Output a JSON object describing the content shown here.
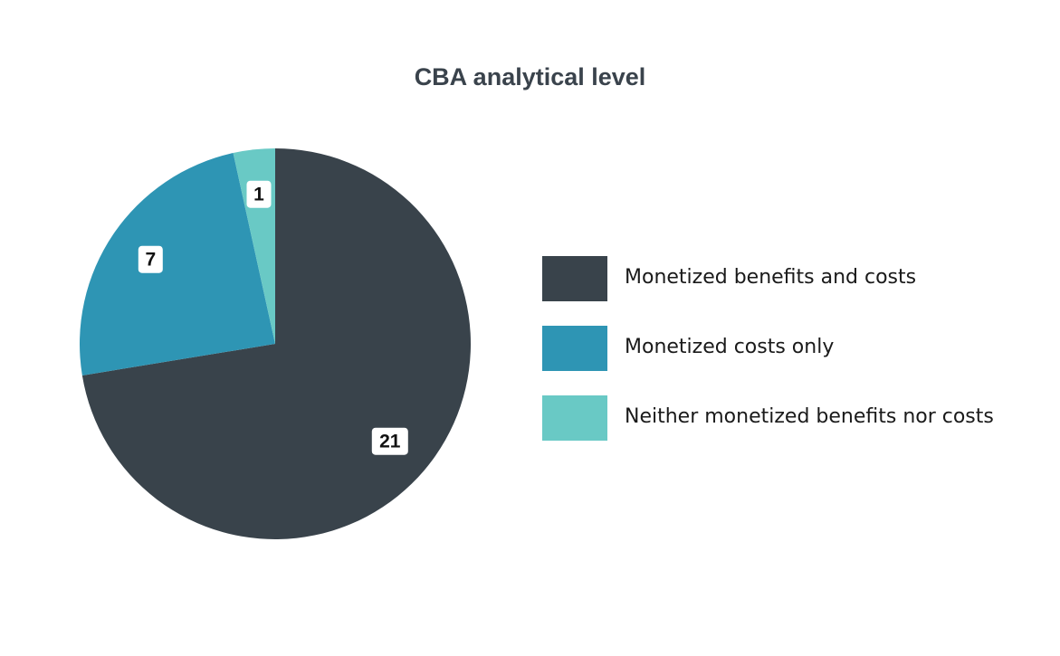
{
  "chart_data": {
    "type": "pie",
    "title": "CBA analytical level",
    "series": [
      {
        "name": "Monetized benefits and costs",
        "value": 21,
        "label": "21",
        "color": "#39434b"
      },
      {
        "name": "Monetized costs only",
        "value": 7,
        "label": "7",
        "color": "#2e95b4"
      },
      {
        "name": "Neither monetized benefits nor costs",
        "value": 1,
        "label": "1",
        "color": "#69c9c5"
      }
    ],
    "start_angle": "12 o'clock",
    "direction": "clockwise",
    "legend_position": "right"
  }
}
